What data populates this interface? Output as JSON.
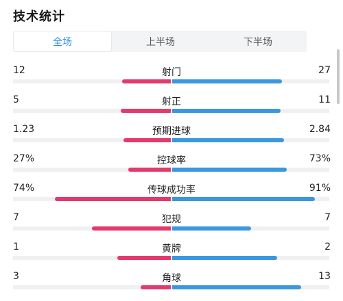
{
  "page": {
    "title": "技术统计"
  },
  "tabs": [
    {
      "label": "全场",
      "active": true
    },
    {
      "label": "上半场",
      "active": false
    },
    {
      "label": "下半场",
      "active": false
    }
  ],
  "colors": {
    "home": "#e23a6c",
    "away": "#3a97e0",
    "active_tab": "#2f8fe3"
  },
  "stats": [
    {
      "label": "射门",
      "home": "12",
      "away": "27",
      "home_bar": 0.31,
      "away_bar": 0.7
    },
    {
      "label": "射正",
      "home": "5",
      "away": "11",
      "home_bar": 0.32,
      "away_bar": 0.69
    },
    {
      "label": "预期进球",
      "home": "1.23",
      "away": "2.84",
      "home_bar": 0.3,
      "away_bar": 0.71
    },
    {
      "label": "控球率",
      "home": "27%",
      "away": "73%",
      "home_bar": 0.27,
      "away_bar": 0.73
    },
    {
      "label": "传球成功率",
      "home": "74%",
      "away": "91%",
      "home_bar": 0.74,
      "away_bar": 0.91
    },
    {
      "label": "犯规",
      "home": "7",
      "away": "7",
      "home_bar": 0.5,
      "away_bar": 0.5
    },
    {
      "label": "黄牌",
      "home": "1",
      "away": "2",
      "home_bar": 0.34,
      "away_bar": 0.67
    },
    {
      "label": "角球",
      "home": "3",
      "away": "13",
      "home_bar": 0.19,
      "away_bar": 0.82
    }
  ]
}
